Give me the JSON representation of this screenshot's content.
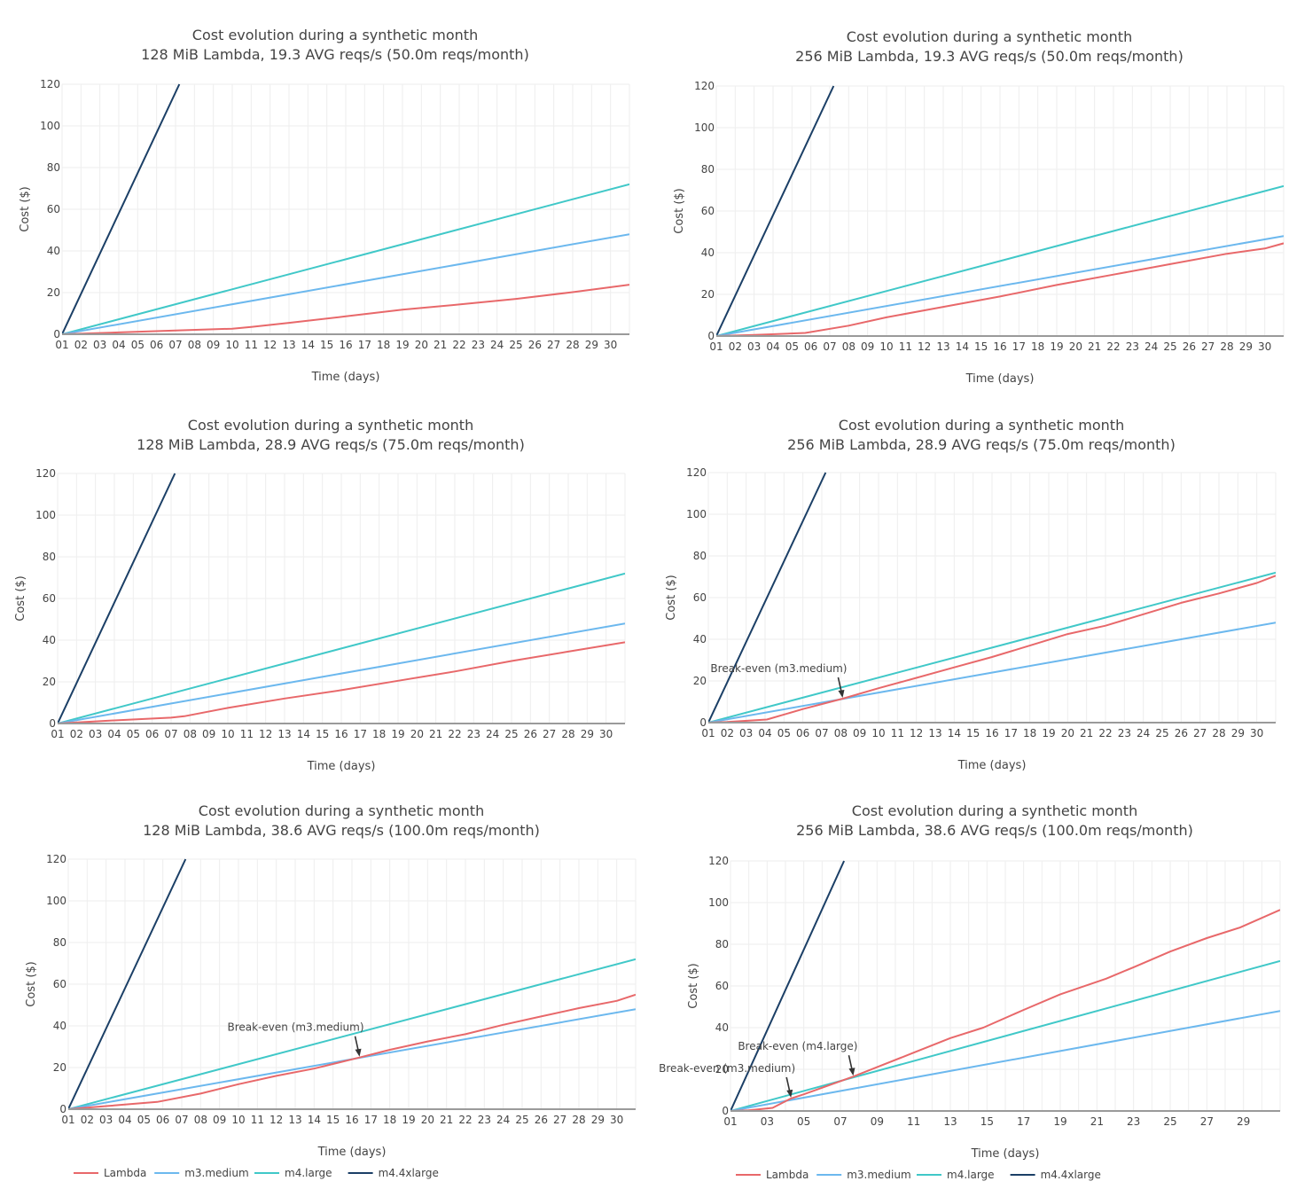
{
  "colors": {
    "Lambda": "#e8686a",
    "m3.medium": "#6cb8ee",
    "m4.large": "#40c8c8",
    "m4.4xlarge": "#1b3f66",
    "grid": "#eeeeee",
    "axis": "#9a9a9a",
    "text": "#444444"
  },
  "chart_data": [
    {
      "type": "line",
      "title": "Cost evolution during a synthetic month",
      "subtitle": "128 MiB Lambda, 19.3 AVG reqs/s (50.0m reqs/month)",
      "xlabel": "Time (days)",
      "ylabel": "Cost ($)",
      "xlim": [
        1,
        31
      ],
      "ylim": [
        0,
        120
      ],
      "yticks": [
        0,
        20,
        40,
        60,
        80,
        100,
        120
      ],
      "xtick_step": 1,
      "xticks": [
        "01",
        "02",
        "03",
        "04",
        "05",
        "06",
        "07",
        "08",
        "09",
        "10",
        "11",
        "12",
        "13",
        "14",
        "15",
        "16",
        "17",
        "18",
        "19",
        "20",
        "21",
        "22",
        "23",
        "24",
        "25",
        "26",
        "27",
        "28",
        "29",
        "30"
      ],
      "grid": true,
      "legend": null,
      "series": [
        {
          "name": "Lambda",
          "x": [
            1,
            4,
            7,
            10,
            11,
            13,
            16,
            19,
            22,
            25,
            28,
            31
          ],
          "y": [
            0,
            0.9,
            1.8,
            2.7,
            3.5,
            5.5,
            8.6,
            11.8,
            14.3,
            17.0,
            20.2,
            23.8
          ]
        },
        {
          "name": "m3.medium",
          "x": [
            1,
            31
          ],
          "y": [
            0,
            48
          ]
        },
        {
          "name": "m4.large",
          "x": [
            1,
            31
          ],
          "y": [
            0,
            72
          ]
        },
        {
          "name": "m4.4xlarge",
          "x": [
            1,
            7.2
          ],
          "y": [
            0,
            120
          ]
        }
      ],
      "annotations": []
    },
    {
      "type": "line",
      "title": "Cost evolution during a synthetic month",
      "subtitle": "256 MiB Lambda, 19.3 AVG reqs/s (50.0m reqs/month)",
      "xlabel": "Time (days)",
      "ylabel": "Cost ($)",
      "xlim": [
        1,
        31
      ],
      "ylim": [
        0,
        120
      ],
      "yticks": [
        0,
        20,
        40,
        60,
        80,
        100,
        120
      ],
      "xtick_step": 1,
      "xticks": [
        "01",
        "02",
        "03",
        "04",
        "05",
        "06",
        "07",
        "08",
        "09",
        "10",
        "11",
        "12",
        "13",
        "14",
        "15",
        "16",
        "17",
        "18",
        "19",
        "20",
        "21",
        "22",
        "23",
        "24",
        "25",
        "26",
        "27",
        "28",
        "29",
        "30"
      ],
      "grid": true,
      "legend": null,
      "series": [
        {
          "name": "Lambda",
          "x": [
            1,
            3,
            5.7,
            8,
            10,
            13,
            16,
            19,
            22,
            25,
            28,
            30,
            31
          ],
          "y": [
            0,
            0.5,
            1.5,
            5,
            9,
            14,
            19,
            24.5,
            29.5,
            34.5,
            39.5,
            42,
            44.5
          ]
        },
        {
          "name": "m3.medium",
          "x": [
            1,
            31
          ],
          "y": [
            0,
            48
          ]
        },
        {
          "name": "m4.large",
          "x": [
            1,
            31
          ],
          "y": [
            0,
            72
          ]
        },
        {
          "name": "m4.4xlarge",
          "x": [
            1,
            7.2
          ],
          "y": [
            0,
            120
          ]
        }
      ],
      "annotations": []
    },
    {
      "type": "line",
      "title": "Cost evolution during a synthetic month",
      "subtitle": "128 MiB Lambda, 28.9 AVG reqs/s (75.0m reqs/month)",
      "xlabel": "Time (days)",
      "ylabel": "Cost ($)",
      "xlim": [
        1,
        31
      ],
      "ylim": [
        0,
        120
      ],
      "yticks": [
        0,
        20,
        40,
        60,
        80,
        100,
        120
      ],
      "xtick_step": 1,
      "xticks": [
        "01",
        "02",
        "03",
        "04",
        "05",
        "06",
        "07",
        "08",
        "09",
        "10",
        "11",
        "12",
        "13",
        "14",
        "15",
        "16",
        "17",
        "18",
        "19",
        "20",
        "21",
        "22",
        "23",
        "24",
        "25",
        "26",
        "27",
        "28",
        "29",
        "30"
      ],
      "grid": true,
      "legend": null,
      "series": [
        {
          "name": "Lambda",
          "x": [
            1,
            4,
            7,
            7.7,
            10,
            13,
            16,
            19,
            22,
            25,
            28,
            31
          ],
          "y": [
            0,
            1.5,
            2.8,
            3.5,
            7.5,
            12,
            16,
            20.5,
            25,
            30,
            34.5,
            39
          ]
        },
        {
          "name": "m3.medium",
          "x": [
            1,
            31
          ],
          "y": [
            0,
            48
          ]
        },
        {
          "name": "m4.large",
          "x": [
            1,
            31
          ],
          "y": [
            0,
            72
          ]
        },
        {
          "name": "m4.4xlarge",
          "x": [
            1,
            7.2
          ],
          "y": [
            0,
            120
          ]
        }
      ],
      "annotations": []
    },
    {
      "type": "line",
      "title": "Cost evolution during a synthetic month",
      "subtitle": "256 MiB Lambda, 28.9 AVG reqs/s (75.0m reqs/month)",
      "xlabel": "Time (days)",
      "ylabel": "Cost ($)",
      "xlim": [
        1,
        31
      ],
      "ylim": [
        0,
        120
      ],
      "yticks": [
        0,
        20,
        40,
        60,
        80,
        100,
        120
      ],
      "xtick_step": 1,
      "xticks": [
        "01",
        "02",
        "03",
        "04",
        "05",
        "06",
        "07",
        "08",
        "09",
        "10",
        "11",
        "12",
        "13",
        "14",
        "15",
        "16",
        "17",
        "18",
        "19",
        "20",
        "21",
        "22",
        "23",
        "24",
        "25",
        "26",
        "27",
        "28",
        "29",
        "30"
      ],
      "grid": true,
      "legend": null,
      "series": [
        {
          "name": "Lambda",
          "x": [
            1,
            2,
            4.1,
            6,
            8.1,
            10,
            12,
            14,
            16,
            18,
            20,
            22,
            24,
            26,
            28,
            30,
            31
          ],
          "y": [
            0,
            0.3,
            1.5,
            6.5,
            11.5,
            16.5,
            21.5,
            26.5,
            31.5,
            37,
            42.5,
            46.5,
            52,
            57.5,
            62,
            67,
            70.5
          ]
        },
        {
          "name": "m3.medium",
          "x": [
            1,
            31
          ],
          "y": [
            0,
            48
          ]
        },
        {
          "name": "m4.large",
          "x": [
            1,
            31
          ],
          "y": [
            0,
            72
          ]
        },
        {
          "name": "m4.4xlarge",
          "x": [
            1,
            7.2
          ],
          "y": [
            0,
            120
          ]
        }
      ],
      "annotations": [
        {
          "text": "Break-even (m3.medium)",
          "x": 8.1,
          "y": 11.5
        }
      ]
    },
    {
      "type": "line",
      "title": "Cost evolution during a synthetic month",
      "subtitle": "128 MiB Lambda, 38.6 AVG reqs/s (100.0m reqs/month)",
      "xlabel": "Time (days)",
      "ylabel": "Cost ($)",
      "xlim": [
        1,
        31
      ],
      "ylim": [
        0,
        120
      ],
      "yticks": [
        0,
        20,
        40,
        60,
        80,
        100,
        120
      ],
      "xtick_step": 1,
      "xticks": [
        "01",
        "02",
        "03",
        "04",
        "05",
        "06",
        "07",
        "08",
        "09",
        "10",
        "11",
        "12",
        "13",
        "14",
        "15",
        "16",
        "17",
        "18",
        "19",
        "20",
        "21",
        "22",
        "23",
        "24",
        "25",
        "26",
        "27",
        "28",
        "29",
        "30"
      ],
      "grid": true,
      "legend": {
        "position": "bottom-left",
        "entries": [
          "Lambda",
          "m3.medium",
          "m4.large",
          "m4.4xlarge"
        ]
      },
      "series": [
        {
          "name": "Lambda",
          "x": [
            1,
            3,
            5.7,
            8,
            10,
            12,
            14,
            16.4,
            18,
            20,
            22,
            24,
            26,
            28,
            30,
            31
          ],
          "y": [
            0,
            1.5,
            3.5,
            7.5,
            12,
            16,
            19.5,
            24.8,
            28.5,
            32.5,
            36,
            40.5,
            44.5,
            48.5,
            52,
            55
          ]
        },
        {
          "name": "m3.medium",
          "x": [
            1,
            31
          ],
          "y": [
            0,
            48
          ]
        },
        {
          "name": "m4.large",
          "x": [
            1,
            31
          ],
          "y": [
            0,
            72
          ]
        },
        {
          "name": "m4.4xlarge",
          "x": [
            1,
            7.2
          ],
          "y": [
            0,
            120
          ]
        }
      ],
      "annotations": [
        {
          "text": "Break-even (m3.medium)",
          "x": 16.4,
          "y": 24.8
        }
      ]
    },
    {
      "type": "line",
      "title": "Cost evolution during a synthetic month",
      "subtitle": "256 MiB Lambda, 38.6 AVG reqs/s (100.0m reqs/month)",
      "xlabel": "Time (days)",
      "ylabel": "Cost ($)",
      "xlim": [
        1,
        31
      ],
      "ylim": [
        0,
        120
      ],
      "yticks": [
        0,
        20,
        40,
        60,
        80,
        100,
        120
      ],
      "xtick_step": 2,
      "xticks": [
        "01",
        "03",
        "05",
        "07",
        "09",
        "11",
        "13",
        "15",
        "17",
        "19",
        "21",
        "23",
        "25",
        "27",
        "29"
      ],
      "grid": true,
      "legend": {
        "position": "bottom-left",
        "entries": [
          "Lambda",
          "m3.medium",
          "m4.large",
          "m4.4xlarge"
        ]
      },
      "series": [
        {
          "name": "Lambda",
          "x": [
            1,
            2,
            3.3,
            4.3,
            5,
            7.7,
            9,
            11,
            13,
            14.8,
            17,
            19,
            21.5,
            23,
            25,
            27,
            28.8,
            31
          ],
          "y": [
            0,
            0.3,
            1.5,
            6,
            8,
            16.5,
            21,
            28,
            35,
            40,
            48.5,
            56,
            63.5,
            69,
            76.5,
            83,
            88,
            96.5
          ]
        },
        {
          "name": "m3.medium",
          "x": [
            1,
            31
          ],
          "y": [
            0,
            48
          ]
        },
        {
          "name": "m4.large",
          "x": [
            1,
            31
          ],
          "y": [
            0,
            72
          ]
        },
        {
          "name": "m4.4xlarge",
          "x": [
            1,
            7.2
          ],
          "y": [
            0,
            120
          ]
        }
      ],
      "annotations": [
        {
          "text": "Break-even (m3.medium)",
          "x": 4.3,
          "y": 6
        },
        {
          "text": "Break-even (m4.large)",
          "x": 7.7,
          "y": 16.5
        }
      ]
    }
  ]
}
